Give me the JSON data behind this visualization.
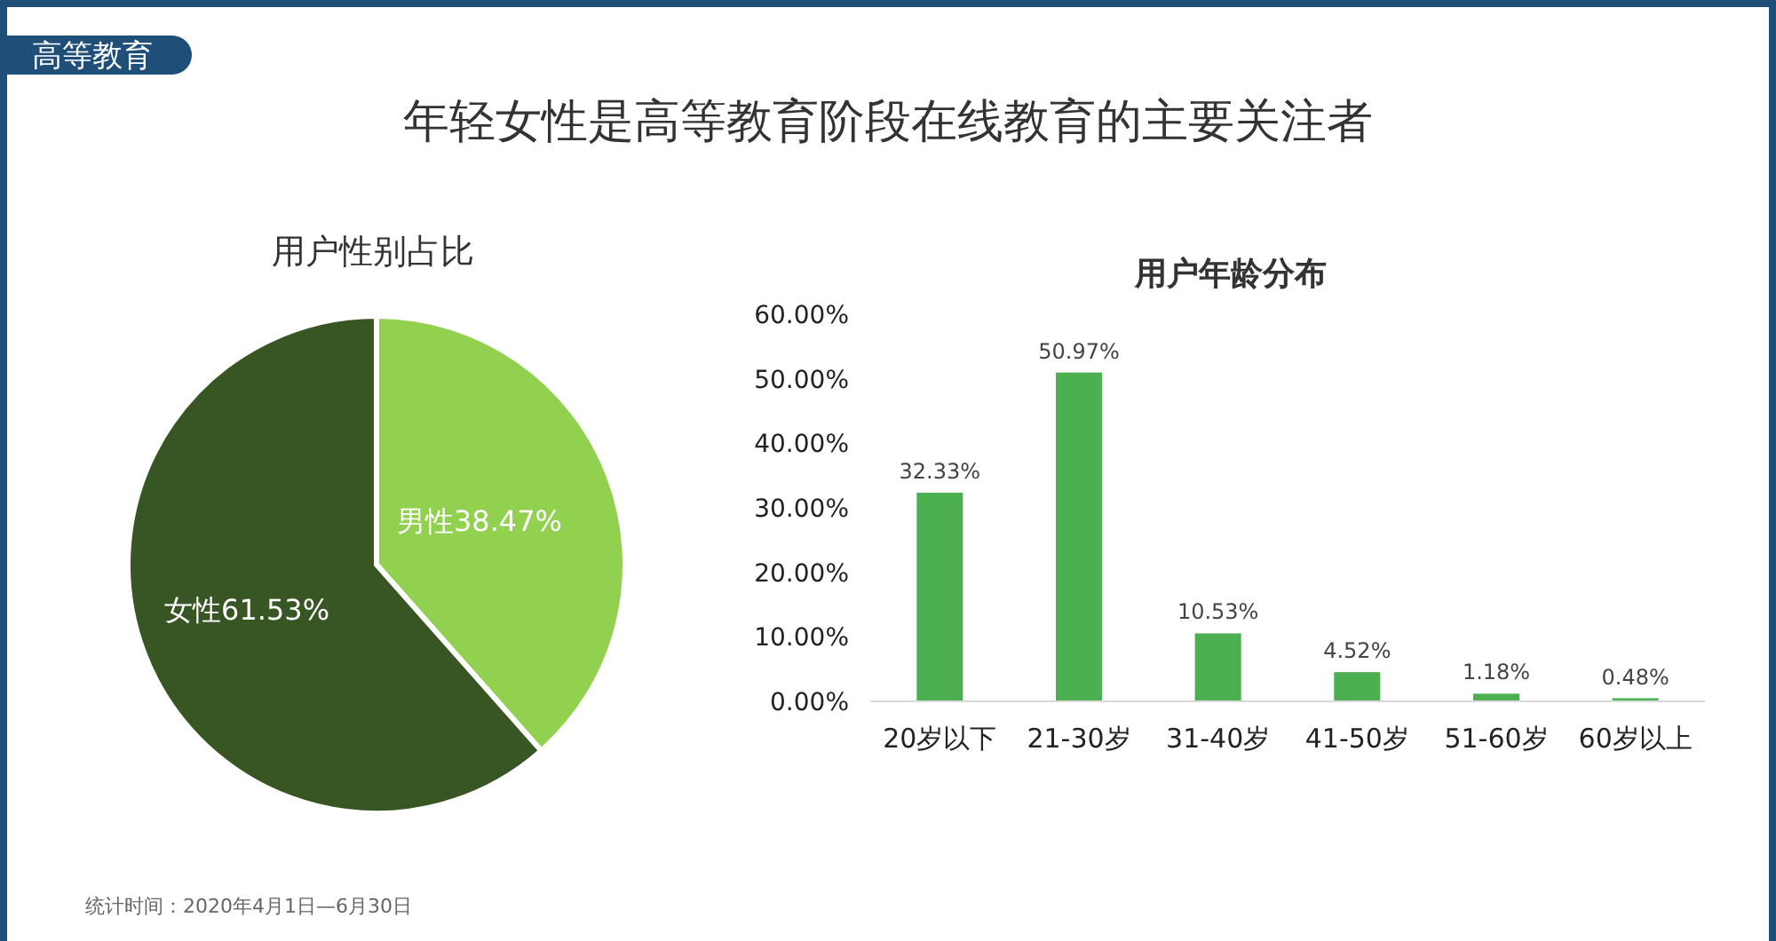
{
  "chart_data": [
    {
      "type": "other",
      "title": "年轻女性是高等教育阶段在线教育的主要关注者",
      "annotations": [
        "高等教育",
        "统计时间：2020年4月1日—6月30日"
      ]
    },
    {
      "type": "pie",
      "title": "用户性别占比",
      "categories": [
        "男性",
        "女性"
      ],
      "values": [
        38.47,
        61.53
      ],
      "colors": [
        "#92d050",
        "#375623"
      ],
      "value_labels": [
        "38.47%",
        "61.53%"
      ]
    },
    {
      "type": "bar",
      "title": "用户年龄分布",
      "categories": [
        "20岁以下",
        "21-30岁",
        "31-40岁",
        "41-50岁",
        "51-60岁",
        "60岁以上"
      ],
      "values": [
        32.33,
        50.97,
        10.53,
        4.52,
        1.18,
        0.48
      ],
      "color": "#4caf50",
      "value_labels": [
        "32.33%",
        "50.97%",
        "10.53%",
        "4.52%",
        "1.18%",
        "0.48%"
      ],
      "ylim": [
        0,
        60
      ],
      "yticks": [
        {
          "value": 0,
          "label": "0.00%"
        },
        {
          "value": 10,
          "label": "10.00%"
        },
        {
          "value": 20,
          "label": "20.00%"
        },
        {
          "value": 30,
          "label": "30.00%"
        },
        {
          "value": 40,
          "label": "40.00%"
        },
        {
          "value": 50,
          "label": "50.00%"
        },
        {
          "value": 60,
          "label": "60.00%"
        }
      ],
      "grid": false
    }
  ]
}
